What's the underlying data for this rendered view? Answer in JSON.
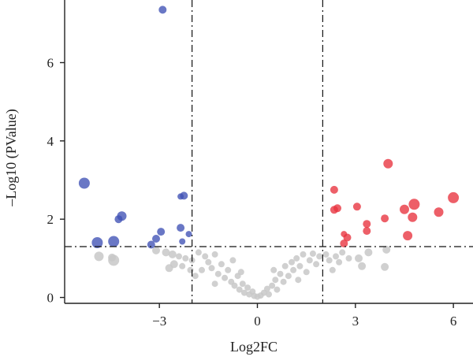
{
  "chart_data": {
    "type": "scatter",
    "title": "",
    "xlabel": "Log2FC",
    "ylabel": "–Log10 (PValue)",
    "xlim": [
      -5.9,
      6.6
    ],
    "ylim": [
      -0.15,
      7.6
    ],
    "x_ticks": [
      -3,
      0,
      3,
      6
    ],
    "x_tick_labels": [
      "−3",
      "0",
      "3",
      "6"
    ],
    "y_ticks": [
      0,
      2,
      4,
      6
    ],
    "y_tick_labels": [
      "0",
      "2",
      "4",
      "6"
    ],
    "grid": false,
    "legend": "none",
    "thresholds": {
      "log2fc": [
        -2,
        2
      ],
      "neg_log10_pvalue": 1.3,
      "line_style": "dash-dot"
    },
    "colors": {
      "down": "#3f51b5",
      "up": "#e8323e",
      "ns": "#c8c8c8",
      "axis": "#222222"
    },
    "series": [
      {
        "group": "down",
        "points": [
          {
            "x": -2.9,
            "y": 7.35,
            "s": 5
          },
          {
            "x": -5.3,
            "y": 2.92,
            "s": 7
          },
          {
            "x": -4.15,
            "y": 2.08,
            "s": 6
          },
          {
            "x": -4.25,
            "y": 2.0,
            "s": 5
          },
          {
            "x": -2.25,
            "y": 2.6,
            "s": 5
          },
          {
            "x": -2.35,
            "y": 2.58,
            "s": 4
          },
          {
            "x": -2.35,
            "y": 1.78,
            "s": 5
          },
          {
            "x": -2.95,
            "y": 1.68,
            "s": 5
          },
          {
            "x": -2.1,
            "y": 1.62,
            "s": 4
          },
          {
            "x": -3.1,
            "y": 1.5,
            "s": 5
          },
          {
            "x": -4.9,
            "y": 1.4,
            "s": 7
          },
          {
            "x": -4.4,
            "y": 1.43,
            "s": 7
          },
          {
            "x": -2.3,
            "y": 1.43,
            "s": 4
          },
          {
            "x": -3.25,
            "y": 1.35,
            "s": 5
          }
        ]
      },
      {
        "group": "up",
        "points": [
          {
            "x": 4.0,
            "y": 3.42,
            "s": 6
          },
          {
            "x": 2.35,
            "y": 2.75,
            "s": 5
          },
          {
            "x": 6.0,
            "y": 2.55,
            "s": 7
          },
          {
            "x": 4.8,
            "y": 2.38,
            "s": 7
          },
          {
            "x": 3.05,
            "y": 2.32,
            "s": 5
          },
          {
            "x": 2.45,
            "y": 2.28,
            "s": 5
          },
          {
            "x": 2.35,
            "y": 2.24,
            "s": 5
          },
          {
            "x": 4.5,
            "y": 2.25,
            "s": 6
          },
          {
            "x": 5.55,
            "y": 2.18,
            "s": 6
          },
          {
            "x": 4.75,
            "y": 2.05,
            "s": 6
          },
          {
            "x": 3.9,
            "y": 2.02,
            "s": 5
          },
          {
            "x": 3.35,
            "y": 1.88,
            "s": 5
          },
          {
            "x": 3.35,
            "y": 1.7,
            "s": 5
          },
          {
            "x": 2.65,
            "y": 1.62,
            "s": 4
          },
          {
            "x": 4.6,
            "y": 1.58,
            "s": 6
          },
          {
            "x": 2.75,
            "y": 1.53,
            "s": 5
          },
          {
            "x": 2.65,
            "y": 1.38,
            "s": 5
          }
        ]
      },
      {
        "group": "ns",
        "points": [
          {
            "x": -4.85,
            "y": 1.05,
            "s": 6
          },
          {
            "x": -4.4,
            "y": 0.95,
            "s": 7
          },
          {
            "x": -4.45,
            "y": 1.02,
            "s": 5
          },
          {
            "x": -3.1,
            "y": 1.2,
            "s": 5
          },
          {
            "x": -2.8,
            "y": 1.15,
            "s": 5
          },
          {
            "x": -2.6,
            "y": 1.1,
            "s": 5
          },
          {
            "x": -2.4,
            "y": 1.05,
            "s": 4
          },
          {
            "x": -2.2,
            "y": 1.0,
            "s": 4
          },
          {
            "x": -2.55,
            "y": 0.85,
            "s": 5
          },
          {
            "x": -2.7,
            "y": 0.75,
            "s": 5
          },
          {
            "x": -2.3,
            "y": 0.8,
            "s": 4
          },
          {
            "x": -2.0,
            "y": 0.95,
            "s": 4
          },
          {
            "x": -1.8,
            "y": 1.15,
            "s": 4
          },
          {
            "x": -1.6,
            "y": 1.05,
            "s": 4
          },
          {
            "x": -1.5,
            "y": 0.9,
            "s": 4
          },
          {
            "x": -1.7,
            "y": 0.7,
            "s": 4
          },
          {
            "x": -1.9,
            "y": 0.55,
            "s": 4
          },
          {
            "x": -1.4,
            "y": 0.75,
            "s": 4
          },
          {
            "x": -1.3,
            "y": 1.1,
            "s": 4
          },
          {
            "x": -1.2,
            "y": 0.6,
            "s": 4
          },
          {
            "x": -1.1,
            "y": 0.85,
            "s": 4
          },
          {
            "x": -1.0,
            "y": 0.5,
            "s": 4
          },
          {
            "x": -0.9,
            "y": 0.7,
            "s": 4
          },
          {
            "x": -0.8,
            "y": 0.4,
            "s": 4
          },
          {
            "x": -0.75,
            "y": 0.95,
            "s": 4
          },
          {
            "x": -0.7,
            "y": 0.3,
            "s": 4
          },
          {
            "x": -0.6,
            "y": 0.55,
            "s": 4
          },
          {
            "x": -0.55,
            "y": 0.2,
            "s": 4
          },
          {
            "x": -0.45,
            "y": 0.35,
            "s": 4
          },
          {
            "x": -0.4,
            "y": 0.12,
            "s": 4
          },
          {
            "x": -0.3,
            "y": 0.25,
            "s": 4
          },
          {
            "x": -0.25,
            "y": 0.08,
            "s": 4
          },
          {
            "x": -0.15,
            "y": 0.15,
            "s": 4
          },
          {
            "x": -0.1,
            "y": 0.04,
            "s": 4
          },
          {
            "x": 0.0,
            "y": 0.02,
            "s": 4
          },
          {
            "x": 0.1,
            "y": 0.05,
            "s": 4
          },
          {
            "x": 0.2,
            "y": 0.12,
            "s": 4
          },
          {
            "x": 0.3,
            "y": 0.22,
            "s": 4
          },
          {
            "x": 0.35,
            "y": 0.08,
            "s": 4
          },
          {
            "x": 0.45,
            "y": 0.3,
            "s": 4
          },
          {
            "x": 0.55,
            "y": 0.45,
            "s": 4
          },
          {
            "x": 0.6,
            "y": 0.2,
            "s": 4
          },
          {
            "x": 0.7,
            "y": 0.6,
            "s": 4
          },
          {
            "x": 0.8,
            "y": 0.4,
            "s": 4
          },
          {
            "x": 0.85,
            "y": 0.8,
            "s": 4
          },
          {
            "x": 0.95,
            "y": 0.55,
            "s": 4
          },
          {
            "x": 1.05,
            "y": 0.9,
            "s": 4
          },
          {
            "x": 1.1,
            "y": 0.7,
            "s": 4
          },
          {
            "x": 1.2,
            "y": 1.0,
            "s": 4
          },
          {
            "x": 1.3,
            "y": 0.8,
            "s": 4
          },
          {
            "x": 1.4,
            "y": 1.1,
            "s": 4
          },
          {
            "x": 1.5,
            "y": 0.65,
            "s": 4
          },
          {
            "x": 1.6,
            "y": 0.95,
            "s": 4
          },
          {
            "x": 1.7,
            "y": 1.12,
            "s": 4
          },
          {
            "x": 1.8,
            "y": 0.85,
            "s": 4
          },
          {
            "x": 1.9,
            "y": 1.05,
            "s": 4
          },
          {
            "x": 2.1,
            "y": 1.1,
            "s": 4
          },
          {
            "x": 2.2,
            "y": 0.95,
            "s": 4
          },
          {
            "x": 2.4,
            "y": 1.05,
            "s": 4
          },
          {
            "x": 2.5,
            "y": 0.9,
            "s": 4
          },
          {
            "x": 2.6,
            "y": 1.15,
            "s": 4
          },
          {
            "x": 2.8,
            "y": 1.0,
            "s": 4
          },
          {
            "x": 3.1,
            "y": 1.0,
            "s": 5
          },
          {
            "x": 3.4,
            "y": 1.15,
            "s": 5
          },
          {
            "x": 3.2,
            "y": 0.8,
            "s": 5
          },
          {
            "x": 3.95,
            "y": 1.22,
            "s": 5
          },
          {
            "x": 3.9,
            "y": 0.78,
            "s": 5
          },
          {
            "x": -1.3,
            "y": 0.35,
            "s": 4
          },
          {
            "x": -0.5,
            "y": 0.65,
            "s": 4
          },
          {
            "x": 0.5,
            "y": 0.7,
            "s": 4
          },
          {
            "x": 1.25,
            "y": 0.45,
            "s": 4
          },
          {
            "x": -2.05,
            "y": 0.7,
            "s": 4
          },
          {
            "x": 2.3,
            "y": 0.7,
            "s": 4
          }
        ]
      }
    ]
  }
}
